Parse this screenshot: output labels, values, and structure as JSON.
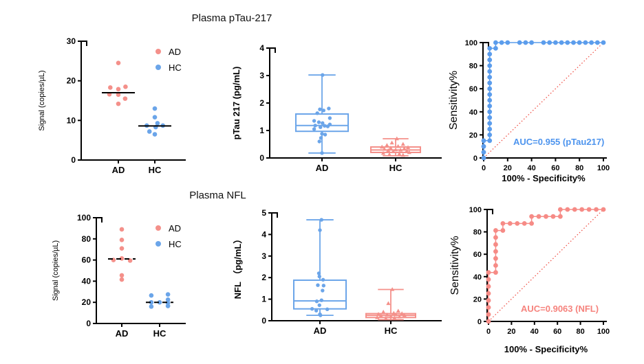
{
  "figure": {
    "title_ptau": "Plasma pTau-217",
    "title_nfl": "Plasma NFL"
  },
  "colors": {
    "pink": "#f4908a",
    "blue": "#6ba5e9",
    "roc_blue": "#5c9dec",
    "roc_pink": "#f68b86",
    "diagonal_red": "#f05248",
    "auc_blue_text": "#4d94ee",
    "auc_pink_text": "#f6837d",
    "axis_black": "#000000"
  },
  "chart_data": [
    {
      "id": "ptau_scatter",
      "type": "scatter",
      "variant": "column-dot-plot",
      "ylabel": "Signal (copies/µL)",
      "ylim": [
        0,
        30
      ],
      "yticks": [
        0,
        10,
        20,
        30
      ],
      "categories": [
        "AD",
        "HC"
      ],
      "median_line": "solid",
      "legend": {
        "position": "top-right",
        "entries": [
          {
            "label": "AD",
            "color_key": "pink"
          },
          {
            "label": "HC",
            "color_key": "blue"
          }
        ]
      },
      "series": [
        {
          "name": "AD",
          "color_key": "pink",
          "median": 17.0,
          "points": [
            [
              0,
              24.5
            ],
            [
              -0.45,
              18.3
            ],
            [
              0.4,
              18.5
            ],
            [
              0,
              17.9
            ],
            [
              -0.5,
              16.6
            ],
            [
              0,
              16.5
            ],
            [
              0.38,
              15.5
            ],
            [
              0,
              14.2
            ]
          ]
        },
        {
          "name": "HC",
          "color_key": "blue",
          "median": 8.6,
          "points": [
            [
              0,
              13.0
            ],
            [
              0,
              10.8
            ],
            [
              0.15,
              9.3
            ],
            [
              -0.45,
              8.7
            ],
            [
              0.45,
              8.7
            ],
            [
              0.05,
              8.3
            ],
            [
              -0.3,
              7.2
            ],
            [
              0,
              6.5
            ]
          ]
        }
      ]
    },
    {
      "id": "ptau_box",
      "type": "box",
      "ylabel": "pTau 217 (pg/mL)",
      "ylim": [
        0,
        4
      ],
      "yticks": [
        0,
        1,
        2,
        3,
        4
      ],
      "categories": [
        "AD",
        "HC"
      ],
      "series": [
        {
          "name": "AD",
          "color_key": "blue",
          "marker": "circle",
          "box": {
            "lo": 0.18,
            "q1": 0.97,
            "med": 1.18,
            "q3": 1.6,
            "hi": 3.02
          },
          "points": [
            [
              0.02,
              3.02
            ],
            [
              0.26,
              1.8
            ],
            [
              -0.08,
              1.77
            ],
            [
              0.06,
              1.73
            ],
            [
              -0.18,
              1.63
            ],
            [
              0.3,
              1.45
            ],
            [
              -0.3,
              1.35
            ],
            [
              -0.12,
              1.3
            ],
            [
              0.02,
              1.27
            ],
            [
              0.3,
              1.22
            ],
            [
              -0.26,
              1.18
            ],
            [
              0.1,
              1.17
            ],
            [
              0.22,
              1.15
            ],
            [
              -0.06,
              1.12
            ],
            [
              -0.3,
              1.05
            ],
            [
              0,
              0.88
            ],
            [
              0.12,
              0.85
            ],
            [
              -0.04,
              0.73
            ],
            [
              -0.1,
              0.6
            ],
            [
              0,
              0.18
            ]
          ]
        },
        {
          "name": "HC",
          "color_key": "pink",
          "marker": "triangle",
          "box": {
            "lo": 0.08,
            "q1": 0.2,
            "med": 0.29,
            "q3": 0.4,
            "hi": 0.7
          },
          "points": [
            [
              0.05,
              0.7
            ],
            [
              -0.15,
              0.55
            ],
            [
              0.3,
              0.5
            ],
            [
              -0.35,
              0.46
            ],
            [
              0.1,
              0.42
            ],
            [
              -0.55,
              0.4
            ],
            [
              0.5,
              0.38
            ],
            [
              -0.2,
              0.36
            ],
            [
              0.35,
              0.34
            ],
            [
              -0.45,
              0.32
            ],
            [
              0,
              0.3
            ],
            [
              0.2,
              0.29
            ],
            [
              -0.3,
              0.27
            ],
            [
              0.45,
              0.25
            ],
            [
              -0.1,
              0.23
            ],
            [
              0.55,
              0.2
            ],
            [
              -0.5,
              0.17
            ],
            [
              0.15,
              0.14
            ],
            [
              -0.25,
              0.12
            ],
            [
              0.3,
              0.1
            ]
          ]
        }
      ]
    },
    {
      "id": "ptau_roc",
      "type": "roc",
      "ylabel": "Sensitivity%",
      "xlabel": "100% - Specificity%",
      "xlim": [
        0,
        100
      ],
      "ylim": [
        0,
        100
      ],
      "xticks": [
        0,
        20,
        40,
        60,
        80,
        100
      ],
      "yticks": [
        0,
        20,
        40,
        60,
        80,
        100
      ],
      "color_key": "roc_blue",
      "diagonal": true,
      "auc_text": "AUC=0.955 (pTau217)",
      "points": [
        [
          0,
          0
        ],
        [
          0,
          5
        ],
        [
          0,
          10
        ],
        [
          0,
          15
        ],
        [
          5,
          15
        ],
        [
          5,
          20
        ],
        [
          5,
          25
        ],
        [
          5,
          30
        ],
        [
          5,
          35
        ],
        [
          5,
          40
        ],
        [
          5,
          45
        ],
        [
          5,
          50
        ],
        [
          5,
          55
        ],
        [
          5,
          60
        ],
        [
          5,
          65
        ],
        [
          5,
          70
        ],
        [
          5,
          75
        ],
        [
          5,
          80
        ],
        [
          5,
          85
        ],
        [
          5,
          90
        ],
        [
          5,
          95
        ],
        [
          10,
          95
        ],
        [
          10,
          100
        ],
        [
          15,
          100
        ],
        [
          20,
          100
        ],
        [
          30,
          100
        ],
        [
          35,
          100
        ],
        [
          40,
          100
        ],
        [
          50,
          100
        ],
        [
          55,
          100
        ],
        [
          60,
          100
        ],
        [
          65,
          100
        ],
        [
          70,
          100
        ],
        [
          75,
          100
        ],
        [
          80,
          100
        ],
        [
          85,
          100
        ],
        [
          90,
          100
        ],
        [
          95,
          100
        ],
        [
          100,
          100
        ]
      ]
    },
    {
      "id": "nfl_scatter",
      "type": "scatter",
      "variant": "column-dot-plot",
      "ylabel": "Signal (copies/µL)",
      "ylim": [
        0,
        100
      ],
      "yticks": [
        0,
        20,
        40,
        60,
        80,
        100
      ],
      "categories": [
        "AD",
        "HC"
      ],
      "median_line": "dashed",
      "legend": {
        "position": "top-right",
        "entries": [
          {
            "label": "AD",
            "color_key": "pink"
          },
          {
            "label": "HC",
            "color_key": "blue"
          }
        ]
      },
      "series": [
        {
          "name": "AD",
          "color_key": "pink",
          "median": 61,
          "points": [
            [
              0,
              89
            ],
            [
              0,
              79
            ],
            [
              0,
              71
            ],
            [
              0,
              61.5
            ],
            [
              -0.55,
              60
            ],
            [
              0.55,
              59.5
            ],
            [
              0,
              45.5
            ],
            [
              0,
              41.5
            ]
          ]
        },
        {
          "name": "HC",
          "color_key": "blue",
          "median": 20,
          "points": [
            [
              -0.55,
              26.5
            ],
            [
              0.55,
              27.5
            ],
            [
              0.55,
              22.5
            ],
            [
              -0.55,
              20
            ],
            [
              0,
              20
            ],
            [
              0.55,
              19.5
            ],
            [
              -0.55,
              16
            ],
            [
              0.55,
              16.5
            ]
          ]
        }
      ]
    },
    {
      "id": "nfl_box",
      "type": "box",
      "ylabel": "NFL （pg/mL）",
      "ylim": [
        0,
        5
      ],
      "yticks": [
        0,
        1,
        2,
        3,
        4,
        5
      ],
      "categories": [
        "AD",
        "HC"
      ],
      "series": [
        {
          "name": "AD",
          "color_key": "blue",
          "marker": "circle",
          "box": {
            "lo": 0.25,
            "q1": 0.55,
            "med": 0.92,
            "q3": 1.88,
            "hi": 4.68
          },
          "points": [
            [
              0.06,
              4.68
            ],
            [
              0,
              4.2
            ],
            [
              -0.04,
              2.2
            ],
            [
              -0.02,
              2.05
            ],
            [
              0.12,
              1.9
            ],
            [
              -0.08,
              1.65
            ],
            [
              0.14,
              1.63
            ],
            [
              0.1,
              1.4
            ],
            [
              0.06,
              0.95
            ],
            [
              -0.12,
              0.9
            ],
            [
              -0.02,
              0.72
            ],
            [
              -0.3,
              0.55
            ],
            [
              0.28,
              0.53
            ],
            [
              -0.14,
              0.47
            ],
            [
              0,
              0.3
            ],
            [
              0.02,
              0.25
            ]
          ]
        },
        {
          "name": "HC",
          "color_key": "pink",
          "marker": "triangle",
          "box": {
            "lo": 0.05,
            "q1": 0.15,
            "med": 0.25,
            "q3": 0.33,
            "hi": 1.45
          },
          "points": [
            [
              0.06,
              1.45
            ],
            [
              -0.1,
              0.8
            ],
            [
              0.3,
              0.45
            ],
            [
              -0.3,
              0.4
            ],
            [
              0.12,
              0.35
            ],
            [
              0.45,
              0.33
            ],
            [
              -0.5,
              0.3
            ],
            [
              0.2,
              0.28
            ],
            [
              -0.15,
              0.27
            ],
            [
              0.55,
              0.25
            ],
            [
              -0.4,
              0.23
            ],
            [
              0,
              0.2
            ],
            [
              0.35,
              0.18
            ],
            [
              -0.55,
              0.15
            ],
            [
              0.15,
              0.12
            ],
            [
              -0.2,
              0.1
            ]
          ]
        }
      ]
    },
    {
      "id": "nfl_roc",
      "type": "roc",
      "ylabel": "Sensitivity%",
      "xlabel": "100% - Specificity%",
      "xlim": [
        0,
        100
      ],
      "ylim": [
        0,
        100
      ],
      "xticks": [
        0,
        20,
        40,
        60,
        80,
        100
      ],
      "yticks": [
        0,
        20,
        40,
        60,
        80,
        100
      ],
      "color_key": "roc_pink",
      "diagonal": true,
      "auc_text": "AUC=0.9063 (NFL)",
      "points": [
        [
          0,
          0
        ],
        [
          0,
          6.25
        ],
        [
          0,
          12.5
        ],
        [
          0,
          18.75
        ],
        [
          0,
          25
        ],
        [
          0,
          31.25
        ],
        [
          0,
          37.5
        ],
        [
          0,
          43.75
        ],
        [
          6.25,
          43.75
        ],
        [
          6.25,
          50
        ],
        [
          6.25,
          56.25
        ],
        [
          6.25,
          62.5
        ],
        [
          6.25,
          68.75
        ],
        [
          6.25,
          75
        ],
        [
          6.25,
          81.25
        ],
        [
          12.5,
          81.25
        ],
        [
          12.5,
          87.5
        ],
        [
          18.75,
          87.5
        ],
        [
          25,
          87.5
        ],
        [
          31.25,
          87.5
        ],
        [
          37.5,
          87.5
        ],
        [
          37.5,
          93.75
        ],
        [
          43.75,
          93.75
        ],
        [
          50,
          93.75
        ],
        [
          56.25,
          93.75
        ],
        [
          62.5,
          93.75
        ],
        [
          62.5,
          100
        ],
        [
          68.75,
          100
        ],
        [
          75,
          100
        ],
        [
          81.25,
          100
        ],
        [
          87.5,
          100
        ],
        [
          93.75,
          100
        ],
        [
          100,
          100
        ]
      ]
    }
  ]
}
